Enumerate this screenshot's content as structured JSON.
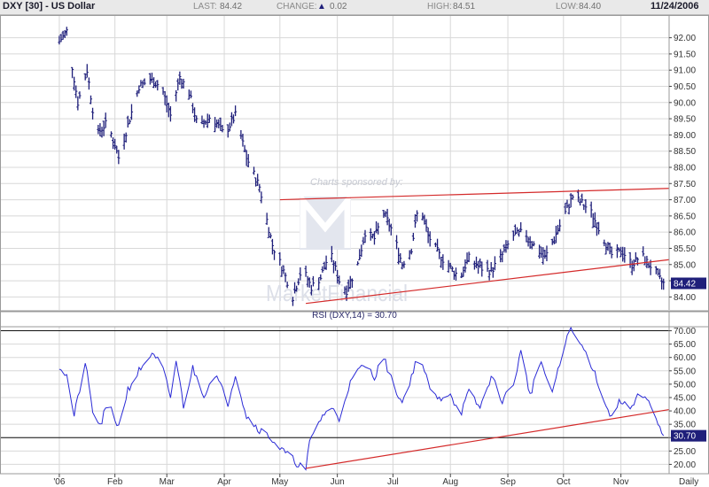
{
  "header": {
    "symbol": "DXY [30] - US Dollar",
    "last_label": "LAST:",
    "last_value": "84.42",
    "change_label": "CHANGE:",
    "change_value": "0.02",
    "high_label": "HIGH:",
    "high_value": "84.51",
    "low_label": "LOW:",
    "low_value": "84.40",
    "date": "11/24/2006"
  },
  "colors": {
    "price_bars": "#1f1f7a",
    "trendline": "#d42a2a",
    "rsi_line": "#2b2bd6",
    "last_badge": "#1f1f7a",
    "grid": "#d8d8d8",
    "frame": "#9a9a9a"
  },
  "watermark": {
    "sponsor_text": "Charts sponsored by:",
    "brand_text": "MarketFinancial"
  },
  "chart_data": [
    {
      "type": "ohlc",
      "title": "DXY [30] - US Dollar",
      "y_ticks": [
        "92.00",
        "91.50",
        "91.00",
        "90.50",
        "90.00",
        "89.50",
        "89.00",
        "88.50",
        "88.00",
        "87.50",
        "87.00",
        "86.50",
        "86.00",
        "85.50",
        "85.00",
        "84.50",
        "84.00"
      ],
      "ylim": [
        83.6,
        92.7
      ],
      "last_value_label": "84.42",
      "price_path": [
        [
          "2006-01-01",
          91.8
        ],
        [
          "2006-01-06",
          92.2
        ],
        [
          "2006-01-12",
          90.0
        ],
        [
          "2006-01-17",
          91.0
        ],
        [
          "2006-01-22",
          89.0
        ],
        [
          "2006-01-28",
          89.4
        ],
        [
          "2006-02-03",
          88.3
        ],
        [
          "2006-02-08",
          89.3
        ],
        [
          "2006-02-14",
          90.5
        ],
        [
          "2006-02-20",
          90.7
        ],
        [
          "2006-02-26",
          90.5
        ],
        [
          "2006-03-03",
          89.6
        ],
        [
          "2006-03-08",
          90.8
        ],
        [
          "2006-03-13",
          90.3
        ],
        [
          "2006-03-18",
          89.2
        ],
        [
          "2006-03-25",
          89.6
        ],
        [
          "2006-04-01",
          89.0
        ],
        [
          "2006-04-07",
          89.6
        ],
        [
          "2006-04-13",
          88.3
        ],
        [
          "2006-04-20",
          87.4
        ],
        [
          "2006-04-27",
          85.6
        ],
        [
          "2006-05-03",
          84.8
        ],
        [
          "2006-05-08",
          84.0
        ],
        [
          "2006-05-13",
          84.9
        ],
        [
          "2006-05-18",
          84.3
        ],
        [
          "2006-05-23",
          84.6
        ],
        [
          "2006-05-28",
          85.4
        ],
        [
          "2006-06-02",
          84.5
        ],
        [
          "2006-06-06",
          84.2
        ],
        [
          "2006-06-12",
          85.0
        ],
        [
          "2006-06-16",
          86.0
        ],
        [
          "2006-06-21",
          85.8
        ],
        [
          "2006-06-26",
          86.6
        ],
        [
          "2006-07-01",
          86.0
        ],
        [
          "2006-07-06",
          85.0
        ],
        [
          "2006-07-11",
          85.5
        ],
        [
          "2006-07-15",
          86.9
        ],
        [
          "2006-07-20",
          85.9
        ],
        [
          "2006-07-26",
          85.3
        ],
        [
          "2006-08-01",
          84.9
        ],
        [
          "2006-08-06",
          84.6
        ],
        [
          "2006-08-11",
          85.2
        ],
        [
          "2006-08-17",
          84.9
        ],
        [
          "2006-08-23",
          84.8
        ],
        [
          "2006-08-29",
          85.3
        ],
        [
          "2006-09-04",
          85.9
        ],
        [
          "2006-09-10",
          86.0
        ],
        [
          "2006-09-15",
          85.6
        ],
        [
          "2006-09-21",
          85.2
        ],
        [
          "2006-09-26",
          85.8
        ],
        [
          "2006-10-02",
          86.6
        ],
        [
          "2006-10-06",
          87.1
        ],
        [
          "2006-10-11",
          86.9
        ],
        [
          "2006-10-16",
          86.6
        ],
        [
          "2006-10-21",
          86.0
        ],
        [
          "2006-10-27",
          85.3
        ],
        [
          "2006-11-02",
          85.4
        ],
        [
          "2006-11-07",
          85.0
        ],
        [
          "2006-11-12",
          85.3
        ],
        [
          "2006-11-16",
          85.0
        ],
        [
          "2006-11-19",
          84.9
        ],
        [
          "2006-11-21",
          84.6
        ],
        [
          "2006-11-24",
          84.42
        ]
      ],
      "trendlines": [
        {
          "from": [
            "2006-05-01",
            87.0
          ],
          "to": [
            "2006-11-27",
            87.35
          ]
        },
        {
          "from": [
            "2006-05-15",
            83.8
          ],
          "to": [
            "2006-11-27",
            85.15
          ]
        }
      ]
    },
    {
      "type": "line",
      "title": "RSI (DXY,14) = 30.70",
      "y_ticks": [
        "70.00",
        "65.00",
        "60.00",
        "55.00",
        "50.00",
        "45.00",
        "40.00",
        "35.00",
        "30.00",
        "25.00",
        "20.00"
      ],
      "ylim": [
        16.5,
        71.5
      ],
      "reference_lines": [
        70,
        30
      ],
      "last_value_label": "30.70",
      "series": [
        {
          "values": [
            [
              "2006-01-01",
              58
            ],
            [
              "2006-01-06",
              53
            ],
            [
              "2006-01-10",
              38
            ],
            [
              "2006-01-16",
              58
            ],
            [
              "2006-01-20",
              40
            ],
            [
              "2006-01-24",
              34
            ],
            [
              "2006-01-28",
              43
            ],
            [
              "2006-02-03",
              34
            ],
            [
              "2006-02-08",
              48
            ],
            [
              "2006-02-14",
              55
            ],
            [
              "2006-02-20",
              61
            ],
            [
              "2006-02-26",
              58
            ],
            [
              "2006-03-03",
              45
            ],
            [
              "2006-03-06",
              59
            ],
            [
              "2006-03-10",
              42
            ],
            [
              "2006-03-15",
              56
            ],
            [
              "2006-03-21",
              46
            ],
            [
              "2006-03-27",
              54
            ],
            [
              "2006-04-03",
              43
            ],
            [
              "2006-04-07",
              54
            ],
            [
              "2006-04-13",
              38
            ],
            [
              "2006-04-20",
              33
            ],
            [
              "2006-04-26",
              30
            ],
            [
              "2006-05-01",
              26
            ],
            [
              "2006-05-06",
              23
            ],
            [
              "2006-05-11",
              20
            ],
            [
              "2006-05-15",
              18
            ],
            [
              "2006-05-17",
              28
            ],
            [
              "2006-05-22",
              36
            ],
            [
              "2006-05-28",
              42
            ],
            [
              "2006-06-02",
              37
            ],
            [
              "2006-06-07",
              49
            ],
            [
              "2006-06-12",
              55
            ],
            [
              "2006-06-16",
              57
            ],
            [
              "2006-06-21",
              53
            ],
            [
              "2006-06-26",
              60
            ],
            [
              "2006-07-01",
              50
            ],
            [
              "2006-07-06",
              43
            ],
            [
              "2006-07-12",
              55
            ],
            [
              "2006-07-15",
              62
            ],
            [
              "2006-07-20",
              50
            ],
            [
              "2006-07-25",
              44
            ],
            [
              "2006-08-01",
              47
            ],
            [
              "2006-08-06",
              38
            ],
            [
              "2006-08-11",
              47
            ],
            [
              "2006-08-17",
              41
            ],
            [
              "2006-08-23",
              53
            ],
            [
              "2006-08-29",
              44
            ],
            [
              "2006-09-04",
              50
            ],
            [
              "2006-09-08",
              62
            ],
            [
              "2006-09-13",
              46
            ],
            [
              "2006-09-19",
              59
            ],
            [
              "2006-09-24",
              45
            ],
            [
              "2006-09-29",
              57
            ],
            [
              "2006-10-04",
              71
            ],
            [
              "2006-10-08",
              67
            ],
            [
              "2006-10-12",
              63
            ],
            [
              "2006-10-17",
              56
            ],
            [
              "2006-10-22",
              46
            ],
            [
              "2006-10-26",
              38
            ],
            [
              "2006-11-01",
              44
            ],
            [
              "2006-11-05",
              40
            ],
            [
              "2006-11-10",
              46
            ],
            [
              "2006-11-15",
              44
            ],
            [
              "2006-11-19",
              38
            ],
            [
              "2006-11-22",
              33
            ],
            [
              "2006-11-24",
              30.7
            ]
          ]
        }
      ],
      "trendlines": [
        {
          "from": [
            "2006-05-15",
            18.5
          ],
          "to": [
            "2006-11-27",
            40.5
          ]
        }
      ]
    }
  ],
  "x_axis": {
    "ticks": [
      {
        "label": "'06",
        "date": "2006-01-02"
      },
      {
        "label": "Feb",
        "date": "2006-02-01"
      },
      {
        "label": "Mar",
        "date": "2006-03-01"
      },
      {
        "label": "Apr",
        "date": "2006-04-01"
      },
      {
        "label": "May",
        "date": "2006-05-01"
      },
      {
        "label": "Jun",
        "date": "2006-06-01"
      },
      {
        "label": "Jul",
        "date": "2006-07-01"
      },
      {
        "label": "Aug",
        "date": "2006-08-01"
      },
      {
        "label": "Sep",
        "date": "2006-09-01"
      },
      {
        "label": "Oct",
        "date": "2006-10-01"
      },
      {
        "label": "Nov",
        "date": "2006-11-01"
      }
    ],
    "range": [
      "2005-12-01",
      "2006-11-27"
    ],
    "period_label": "Daily"
  }
}
